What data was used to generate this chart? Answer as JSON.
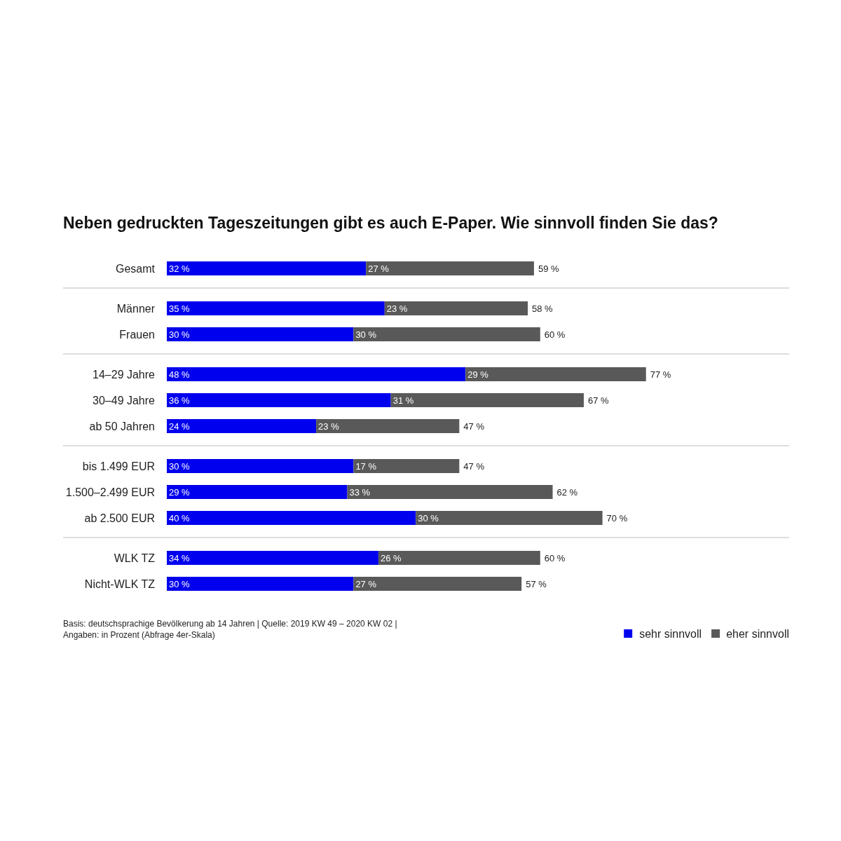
{
  "chart_data": {
    "type": "bar",
    "orientation": "horizontal",
    "stacked": true,
    "title": "Neben gedruckten Tageszeitungen gibt es auch E-Paper. Wie sinnvoll finden Sie das?",
    "categories": [
      "Gesamt",
      null,
      "Männer",
      "Frauen",
      null,
      "14–29 Jahre",
      "30–49 Jahre",
      "ab 50 Jahren",
      null,
      "bis 1.499 EUR",
      "1.500–2.499 EUR",
      "ab 2.500 EUR",
      null,
      "WLK TZ",
      "Nicht-WLK TZ"
    ],
    "series": [
      {
        "name": "sehr sinnvoll",
        "color": "#0000ee",
        "values": [
          32,
          null,
          35,
          30,
          null,
          48,
          36,
          24,
          null,
          30,
          29,
          40,
          null,
          34,
          30
        ],
        "value_labels": [
          "32 %",
          null,
          "35 %",
          "30 %",
          null,
          "48 %",
          "36 %",
          "24 %",
          null,
          "30 %",
          "29 %",
          "40 %",
          null,
          "34 %",
          "30 %"
        ]
      },
      {
        "name": "eher sinnvoll",
        "color": "#595959",
        "values": [
          27,
          null,
          23,
          30,
          null,
          29,
          31,
          23,
          null,
          17,
          33,
          30,
          null,
          26,
          27
        ],
        "value_labels": [
          "27 %",
          null,
          "23 %",
          "30 %",
          null,
          "29 %",
          "31 %",
          "23 %",
          null,
          "17 %",
          "33 %",
          "30 %",
          null,
          "26 %",
          "27 %"
        ]
      }
    ],
    "totals": [
      "59 %",
      null,
      "58 %",
      "60 %",
      null,
      "77 %",
      "67 %",
      "47 %",
      null,
      "47 %",
      "62 %",
      "70 %",
      null,
      "60 %",
      "57 %"
    ],
    "xlim": [
      0,
      100
    ],
    "tick_labels": "y",
    "grid": "y",
    "legend": "bottom right",
    "annotations": [
      "Basis: deutschsprachige Bevölkerung ab 14 Jahren | Quelle: 2019 KW 49 – 2020 KW 02 |",
      "Angaben: in Prozent (Abfrage 4er-Skala)"
    ]
  }
}
